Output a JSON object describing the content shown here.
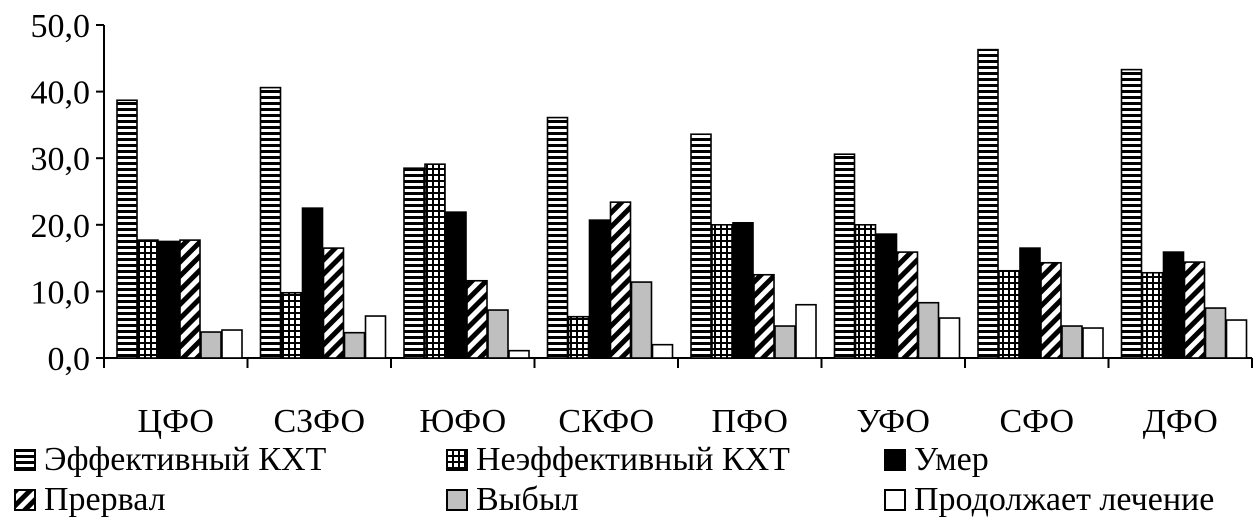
{
  "chart_data": {
    "type": "bar",
    "categories": [
      "ЦФО",
      "СЗФО",
      "ЮФО",
      "СКФО",
      "ПФО",
      "УФО",
      "СФО",
      "ДФО"
    ],
    "series": [
      {
        "name": "Эффективный КХТ",
        "pattern": "hlines",
        "values": [
          38.7,
          40.6,
          28.5,
          36.1,
          33.6,
          30.6,
          46.3,
          43.3
        ]
      },
      {
        "name": "Неэффективный КХТ",
        "pattern": "grid",
        "values": [
          17.7,
          9.8,
          29.1,
          6.2,
          20.0,
          20.0,
          13.1,
          12.8
        ]
      },
      {
        "name": "Умер",
        "pattern": "solid-black",
        "values": [
          17.5,
          22.5,
          21.9,
          20.7,
          20.3,
          18.6,
          16.5,
          15.9
        ]
      },
      {
        "name": "Прервал",
        "pattern": "diagonal",
        "values": [
          17.7,
          16.5,
          11.6,
          23.4,
          12.5,
          15.9,
          14.3,
          14.4
        ]
      },
      {
        "name": "Выбыл",
        "pattern": "solid-gray",
        "values": [
          3.9,
          3.8,
          7.2,
          11.4,
          4.8,
          8.3,
          4.8,
          7.5
        ]
      },
      {
        "name": "Продолжает лечение",
        "pattern": "white",
        "values": [
          4.2,
          6.3,
          1.1,
          2.0,
          8.0,
          6.0,
          4.5,
          5.7
        ]
      }
    ],
    "ylim": [
      0,
      50
    ],
    "yticks": [
      "0,0",
      "10,0",
      "20,0",
      "30,0",
      "40,0",
      "50,0"
    ],
    "ytick_values": [
      0,
      10,
      20,
      30,
      40,
      50
    ],
    "legend_position": "bottom",
    "grid": false
  },
  "legend": {
    "items": [
      {
        "label": "Эффективный КХТ"
      },
      {
        "label": "Неэффективный КХТ"
      },
      {
        "label": "Умер"
      },
      {
        "label": "Прервал"
      },
      {
        "label": "Выбыл"
      },
      {
        "label": "Продолжает лечение"
      }
    ]
  }
}
